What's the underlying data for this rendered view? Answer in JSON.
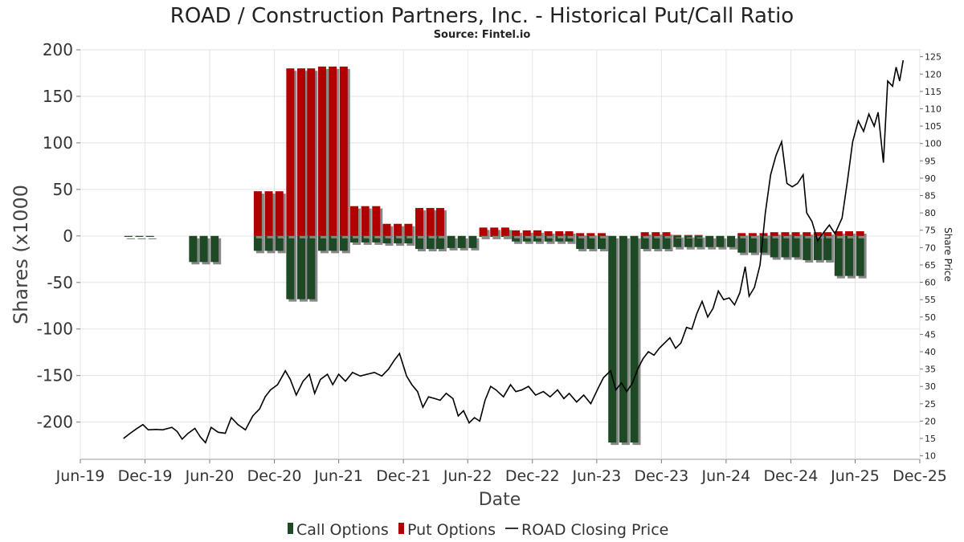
{
  "chart_data": {
    "type": "bar",
    "title": "ROAD / Construction Partners, Inc. - Historical Put/Call Ratio",
    "subtitle": "Source: Fintel.io",
    "xlabel": "Date",
    "ylabel": "Shares (x1000",
    "y2label": "Share Price",
    "ylim": [
      -240,
      200
    ],
    "y2lim": [
      9,
      127
    ],
    "yticks": [
      -200,
      -150,
      -100,
      -50,
      0,
      50,
      100,
      150,
      200
    ],
    "y2ticks": [
      10,
      15,
      20,
      25,
      30,
      35,
      40,
      45,
      50,
      55,
      60,
      65,
      70,
      75,
      80,
      85,
      90,
      95,
      100,
      105,
      110,
      115,
      120,
      125
    ],
    "x_start": "2019-06-01",
    "x_end": "2025-12-01",
    "xticks": [
      {
        "label": "Jun-19",
        "date": "2019-06-01"
      },
      {
        "label": "Dec-19",
        "date": "2019-12-01"
      },
      {
        "label": "Jun-20",
        "date": "2020-06-01"
      },
      {
        "label": "Dec-20",
        "date": "2020-12-01"
      },
      {
        "label": "Jun-21",
        "date": "2021-06-01"
      },
      {
        "label": "Dec-21",
        "date": "2021-12-01"
      },
      {
        "label": "Jun-22",
        "date": "2022-06-01"
      },
      {
        "label": "Dec-22",
        "date": "2022-12-01"
      },
      {
        "label": "Jun-23",
        "date": "2023-06-01"
      },
      {
        "label": "Dec-23",
        "date": "2023-12-01"
      },
      {
        "label": "Jun-24",
        "date": "2024-06-01"
      },
      {
        "label": "Dec-24",
        "date": "2024-12-01"
      },
      {
        "label": "Jun-25",
        "date": "2025-06-01"
      },
      {
        "label": "Dec-25",
        "date": "2025-12-01"
      }
    ],
    "grid": true,
    "legend_position": "bottom",
    "series": [
      {
        "name": "Call Options",
        "color": "#1d4a24",
        "data": [
          [
            "2019-10-15",
            -1
          ],
          [
            "2019-11-15",
            -1
          ],
          [
            "2019-12-15",
            -1
          ],
          [
            "2020-04-15",
            -28
          ],
          [
            "2020-05-15",
            -28
          ],
          [
            "2020-06-15",
            -28
          ],
          [
            "2020-10-15",
            -16
          ],
          [
            "2020-11-15",
            -16
          ],
          [
            "2020-12-15",
            -16
          ],
          [
            "2021-01-15",
            -68
          ],
          [
            "2021-02-15",
            -68
          ],
          [
            "2021-03-15",
            -68
          ],
          [
            "2021-04-15",
            -16
          ],
          [
            "2021-05-15",
            -16
          ],
          [
            "2021-06-15",
            -16
          ],
          [
            "2021-07-15",
            -7
          ],
          [
            "2021-08-15",
            -7
          ],
          [
            "2021-09-15",
            -7
          ],
          [
            "2021-10-15",
            -8
          ],
          [
            "2021-11-15",
            -8
          ],
          [
            "2021-12-15",
            -8
          ],
          [
            "2022-01-15",
            -14
          ],
          [
            "2022-02-15",
            -14
          ],
          [
            "2022-03-15",
            -14
          ],
          [
            "2022-04-15",
            -13
          ],
          [
            "2022-05-15",
            -13
          ],
          [
            "2022-06-15",
            -13
          ],
          [
            "2022-07-15",
            -1
          ],
          [
            "2022-08-15",
            -1
          ],
          [
            "2022-09-15",
            -1
          ],
          [
            "2022-10-15",
            -6
          ],
          [
            "2022-11-15",
            -6
          ],
          [
            "2022-12-15",
            -6
          ],
          [
            "2023-01-15",
            -6
          ],
          [
            "2023-02-15",
            -6
          ],
          [
            "2023-03-15",
            -6
          ],
          [
            "2023-04-15",
            -14
          ],
          [
            "2023-05-15",
            -14
          ],
          [
            "2023-06-15",
            -14
          ],
          [
            "2023-07-15",
            -222
          ],
          [
            "2023-08-15",
            -222
          ],
          [
            "2023-09-15",
            -222
          ],
          [
            "2023-10-15",
            -14
          ],
          [
            "2023-11-15",
            -14
          ],
          [
            "2023-12-15",
            -14
          ],
          [
            "2024-01-15",
            -12
          ],
          [
            "2024-02-15",
            -12
          ],
          [
            "2024-03-15",
            -12
          ],
          [
            "2024-04-15",
            -12
          ],
          [
            "2024-05-15",
            -12
          ],
          [
            "2024-06-15",
            -12
          ],
          [
            "2024-07-15",
            -18
          ],
          [
            "2024-08-15",
            -18
          ],
          [
            "2024-09-15",
            -18
          ],
          [
            "2024-10-15",
            -23
          ],
          [
            "2024-11-15",
            -23
          ],
          [
            "2024-12-15",
            -23
          ],
          [
            "2025-01-15",
            -26
          ],
          [
            "2025-02-15",
            -26
          ],
          [
            "2025-03-15",
            -26
          ],
          [
            "2025-04-15",
            -43
          ],
          [
            "2025-05-15",
            -43
          ],
          [
            "2025-06-15",
            -43
          ]
        ]
      },
      {
        "name": "Put Options",
        "color": "#b00000",
        "data": [
          [
            "2019-10-15",
            0
          ],
          [
            "2019-11-15",
            0
          ],
          [
            "2019-12-15",
            0
          ],
          [
            "2020-04-15",
            0
          ],
          [
            "2020-05-15",
            0
          ],
          [
            "2020-06-15",
            0
          ],
          [
            "2020-10-15",
            48
          ],
          [
            "2020-11-15",
            48
          ],
          [
            "2020-12-15",
            48
          ],
          [
            "2021-01-15",
            180
          ],
          [
            "2021-02-15",
            180
          ],
          [
            "2021-03-15",
            180
          ],
          [
            "2021-04-15",
            182
          ],
          [
            "2021-05-15",
            182
          ],
          [
            "2021-06-15",
            182
          ],
          [
            "2021-07-15",
            32
          ],
          [
            "2021-08-15",
            32
          ],
          [
            "2021-09-15",
            32
          ],
          [
            "2021-10-15",
            13
          ],
          [
            "2021-11-15",
            13
          ],
          [
            "2021-12-15",
            13
          ],
          [
            "2022-01-15",
            30
          ],
          [
            "2022-02-15",
            30
          ],
          [
            "2022-03-15",
            30
          ],
          [
            "2022-04-15",
            0
          ],
          [
            "2022-05-15",
            0
          ],
          [
            "2022-06-15",
            0
          ],
          [
            "2022-07-15",
            9
          ],
          [
            "2022-08-15",
            9
          ],
          [
            "2022-09-15",
            9
          ],
          [
            "2022-10-15",
            6
          ],
          [
            "2022-11-15",
            6
          ],
          [
            "2022-12-15",
            6
          ],
          [
            "2023-01-15",
            5
          ],
          [
            "2023-02-15",
            5
          ],
          [
            "2023-03-15",
            5
          ],
          [
            "2023-04-15",
            3
          ],
          [
            "2023-05-15",
            3
          ],
          [
            "2023-06-15",
            3
          ],
          [
            "2023-07-15",
            0
          ],
          [
            "2023-08-15",
            0
          ],
          [
            "2023-09-15",
            0
          ],
          [
            "2023-10-15",
            4
          ],
          [
            "2023-11-15",
            4
          ],
          [
            "2023-12-15",
            4
          ],
          [
            "2024-01-15",
            1
          ],
          [
            "2024-02-15",
            1
          ],
          [
            "2024-03-15",
            1
          ],
          [
            "2024-04-15",
            0
          ],
          [
            "2024-05-15",
            0
          ],
          [
            "2024-06-15",
            0
          ],
          [
            "2024-07-15",
            3
          ],
          [
            "2024-08-15",
            3
          ],
          [
            "2024-09-15",
            3
          ],
          [
            "2024-10-15",
            4
          ],
          [
            "2024-11-15",
            4
          ],
          [
            "2024-12-15",
            4
          ],
          [
            "2025-01-15",
            4
          ],
          [
            "2025-02-15",
            4
          ],
          [
            "2025-03-15",
            4
          ],
          [
            "2025-04-15",
            5
          ],
          [
            "2025-05-15",
            5
          ],
          [
            "2025-06-15",
            5
          ]
        ]
      },
      {
        "name": "ROAD Closing Price",
        "type": "line",
        "axis": "right",
        "color": "#000000",
        "data": [
          [
            "2019-10-01",
            15.0
          ],
          [
            "2019-10-20",
            16.5
          ],
          [
            "2019-11-10",
            18.0
          ],
          [
            "2019-11-25",
            19.0
          ],
          [
            "2019-12-10",
            17.5
          ],
          [
            "2020-01-01",
            17.6
          ],
          [
            "2020-01-20",
            17.5
          ],
          [
            "2020-02-15",
            18.2
          ],
          [
            "2020-03-01",
            17.0
          ],
          [
            "2020-03-15",
            14.8
          ],
          [
            "2020-04-01",
            16.5
          ],
          [
            "2020-04-20",
            17.9
          ],
          [
            "2020-05-05",
            15.5
          ],
          [
            "2020-05-20",
            13.8
          ],
          [
            "2020-06-05",
            18.2
          ],
          [
            "2020-06-25",
            16.8
          ],
          [
            "2020-07-15",
            16.5
          ],
          [
            "2020-08-01",
            21.0
          ],
          [
            "2020-08-20",
            19.0
          ],
          [
            "2020-09-10",
            17.5
          ],
          [
            "2020-10-01",
            21.5
          ],
          [
            "2020-10-20",
            23.5
          ],
          [
            "2020-11-05",
            27.0
          ],
          [
            "2020-11-20",
            29.0
          ],
          [
            "2020-12-10",
            30.5
          ],
          [
            "2021-01-01",
            34.5
          ],
          [
            "2021-01-15",
            32.0
          ],
          [
            "2021-02-01",
            27.5
          ],
          [
            "2021-02-20",
            31.5
          ],
          [
            "2021-03-10",
            33.5
          ],
          [
            "2021-03-25",
            28.0
          ],
          [
            "2021-04-10",
            32.0
          ],
          [
            "2021-04-30",
            33.5
          ],
          [
            "2021-05-15",
            30.5
          ],
          [
            "2021-06-01",
            33.5
          ],
          [
            "2021-06-20",
            31.5
          ],
          [
            "2021-07-10",
            34.0
          ],
          [
            "2021-08-01",
            33.0
          ],
          [
            "2021-08-20",
            33.5
          ],
          [
            "2021-09-10",
            34.0
          ],
          [
            "2021-10-01",
            33.0
          ],
          [
            "2021-10-20",
            35.0
          ],
          [
            "2021-11-05",
            37.5
          ],
          [
            "2021-11-20",
            39.5
          ],
          [
            "2021-12-10",
            33.0
          ],
          [
            "2021-12-25",
            30.5
          ],
          [
            "2022-01-10",
            28.5
          ],
          [
            "2022-01-25",
            24.0
          ],
          [
            "2022-02-10",
            27.0
          ],
          [
            "2022-02-28",
            26.5
          ],
          [
            "2022-03-15",
            26.0
          ],
          [
            "2022-04-01",
            28.0
          ],
          [
            "2022-04-20",
            26.5
          ],
          [
            "2022-05-05",
            21.5
          ],
          [
            "2022-05-20",
            23.0
          ],
          [
            "2022-06-05",
            19.5
          ],
          [
            "2022-06-20",
            21.0
          ],
          [
            "2022-07-05",
            20.0
          ],
          [
            "2022-07-20",
            26.0
          ],
          [
            "2022-08-05",
            30.0
          ],
          [
            "2022-08-20",
            29.0
          ],
          [
            "2022-09-10",
            27.0
          ],
          [
            "2022-09-30",
            30.5
          ],
          [
            "2022-10-15",
            28.5
          ],
          [
            "2022-11-01",
            29.0
          ],
          [
            "2022-11-20",
            30.0
          ],
          [
            "2022-12-10",
            27.5
          ],
          [
            "2023-01-01",
            28.5
          ],
          [
            "2023-01-20",
            27.0
          ],
          [
            "2023-02-10",
            29.0
          ],
          [
            "2023-02-28",
            26.5
          ],
          [
            "2023-03-15",
            28.0
          ],
          [
            "2023-04-05",
            25.5
          ],
          [
            "2023-04-25",
            27.5
          ],
          [
            "2023-05-15",
            25.0
          ],
          [
            "2023-06-05",
            29.5
          ],
          [
            "2023-06-20",
            32.5
          ],
          [
            "2023-07-10",
            34.5
          ],
          [
            "2023-07-25",
            29.0
          ],
          [
            "2023-08-10",
            31.0
          ],
          [
            "2023-08-25",
            28.5
          ],
          [
            "2023-09-10",
            31.0
          ],
          [
            "2023-09-25",
            35.0
          ],
          [
            "2023-10-10",
            38.0
          ],
          [
            "2023-10-25",
            40.0
          ],
          [
            "2023-11-10",
            39.0
          ],
          [
            "2023-11-25",
            41.0
          ],
          [
            "2023-12-10",
            42.5
          ],
          [
            "2023-12-25",
            44.0
          ],
          [
            "2024-01-10",
            41.0
          ],
          [
            "2024-01-25",
            42.5
          ],
          [
            "2024-02-10",
            47.0
          ],
          [
            "2024-02-25",
            46.5
          ],
          [
            "2024-03-10",
            51.0
          ],
          [
            "2024-03-25",
            54.5
          ],
          [
            "2024-04-10",
            50.0
          ],
          [
            "2024-04-25",
            52.5
          ],
          [
            "2024-05-10",
            57.5
          ],
          [
            "2024-05-25",
            55.0
          ],
          [
            "2024-06-10",
            55.5
          ],
          [
            "2024-06-25",
            53.5
          ],
          [
            "2024-07-10",
            57.0
          ],
          [
            "2024-07-25",
            64.5
          ],
          [
            "2024-08-05",
            56.0
          ],
          [
            "2024-08-20",
            58.5
          ],
          [
            "2024-09-05",
            65.0
          ],
          [
            "2024-09-20",
            80.0
          ],
          [
            "2024-10-05",
            91.0
          ],
          [
            "2024-10-20",
            96.5
          ],
          [
            "2024-11-05",
            100.5
          ],
          [
            "2024-11-20",
            88.5
          ],
          [
            "2024-12-05",
            87.5
          ],
          [
            "2024-12-20",
            88.5
          ],
          [
            "2025-01-05",
            91.0
          ],
          [
            "2025-01-15",
            80.0
          ],
          [
            "2025-01-30",
            77.5
          ],
          [
            "2025-02-15",
            72.0
          ],
          [
            "2025-03-01",
            74.0
          ],
          [
            "2025-03-20",
            76.5
          ],
          [
            "2025-04-05",
            74.0
          ],
          [
            "2025-04-25",
            78.5
          ],
          [
            "2025-05-10",
            89.0
          ],
          [
            "2025-05-25",
            100.5
          ],
          [
            "2025-06-10",
            106.5
          ],
          [
            "2025-06-25",
            103.5
          ],
          [
            "2025-07-10",
            108.5
          ],
          [
            "2025-07-25",
            105.0
          ],
          [
            "2025-08-05",
            109.0
          ],
          [
            "2025-08-20",
            94.5
          ],
          [
            "2025-09-01",
            118.0
          ],
          [
            "2025-09-15",
            116.5
          ],
          [
            "2025-09-25",
            122.0
          ],
          [
            "2025-10-05",
            118.0
          ],
          [
            "2025-10-15",
            124.0
          ]
        ]
      }
    ]
  }
}
